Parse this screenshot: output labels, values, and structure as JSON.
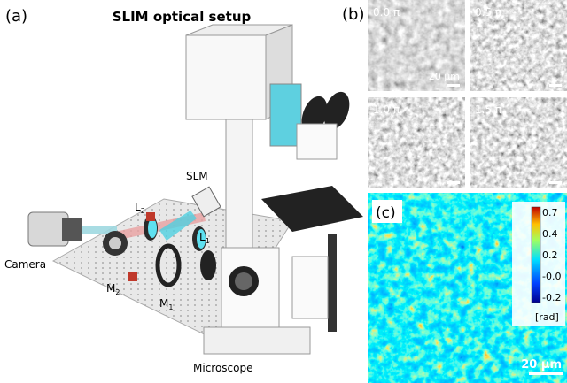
{
  "panel_a": {
    "tag": "(a)",
    "title": "SLIM optical setup",
    "labels": {
      "slm": "SLM",
      "l2": "L",
      "l2_sub": "2",
      "l1": "L",
      "l1_sub": "1",
      "camera": "Camera",
      "m2": "M",
      "m2_sub": "2",
      "m1": "M",
      "m1_sub": "1",
      "microscope": "Microscope"
    }
  },
  "panel_b": {
    "tag": "(b)",
    "images": [
      "0.0 π",
      "0.5 π",
      "1.0 π",
      "1.5 π"
    ],
    "scale_bar": "20 μm"
  },
  "panel_c": {
    "tag": "(c)",
    "colorbar_ticks": [
      "0.7",
      "0.4",
      "0.2",
      "-0.0",
      "-0.2"
    ],
    "unit": "[rad]",
    "scale_bar": "20 μm"
  }
}
